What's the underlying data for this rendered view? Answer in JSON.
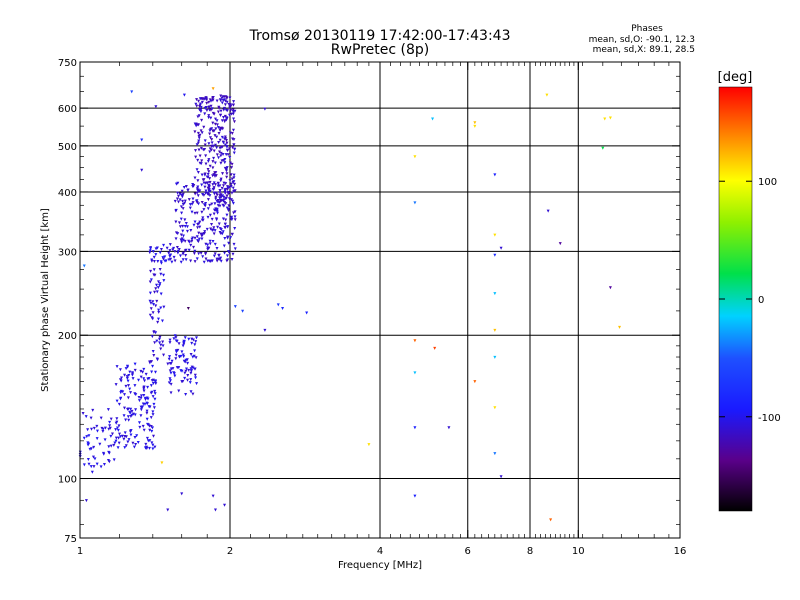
{
  "header": {
    "title": "Tromsø 20130119 17:42:00-17:43:43",
    "subtitle": "RwPretec (8p)"
  },
  "phase_box": {
    "heading": "Phases",
    "line_o": "mean, sd,O: -90.1, 12.3",
    "line_x": "mean, sd,X:  89.1, 28.5"
  },
  "colorbar": {
    "unit": "[deg]",
    "range": [
      -180,
      180
    ],
    "tick_labels": [
      "100",
      "0",
      "-100"
    ],
    "tick_values": [
      100,
      0,
      -100
    ]
  },
  "chart_data": {
    "type": "scatter",
    "xscale": "log",
    "yscale": "log",
    "xlabel": "Frequency [MHz]",
    "ylabel": "Stationary phase Virtual Height [km]",
    "xlim": [
      1,
      16
    ],
    "ylim": [
      75,
      750
    ],
    "xtick_labels": [
      "1",
      "2",
      "4",
      "6",
      "8",
      "10",
      "16"
    ],
    "xtick_values": [
      1,
      2,
      4,
      6,
      8,
      10,
      16
    ],
    "ytick_labels": [
      "750",
      "600",
      "500",
      "400",
      "300",
      "200",
      "100",
      "75"
    ],
    "ytick_values": [
      750,
      600,
      500,
      400,
      300,
      200,
      100,
      75
    ],
    "grid_x": [
      2,
      4,
      6,
      8,
      10
    ],
    "grid_y": [
      100,
      200,
      300,
      400,
      500,
      600
    ],
    "clusters": [
      {
        "f": [
          1.0,
          1.18
        ],
        "h": [
          103,
          140
        ],
        "phase": -105,
        "n": 60
      },
      {
        "f": [
          1.18,
          1.42
        ],
        "h": [
          115,
          175
        ],
        "phase": -105,
        "n": 170
      },
      {
        "f": [
          1.38,
          1.48
        ],
        "h": [
          175,
          290
        ],
        "phase": -108,
        "n": 60
      },
      {
        "f": [
          1.5,
          1.72
        ],
        "h": [
          150,
          200
        ],
        "phase": -105,
        "n": 90
      },
      {
        "f": [
          1.38,
          1.55
        ],
        "h": [
          285,
          312
        ],
        "phase": -105,
        "n": 35
      },
      {
        "f": [
          1.55,
          2.05
        ],
        "h": [
          285,
          420
        ],
        "phase": -110,
        "n": 280
      },
      {
        "f": [
          1.7,
          2.05
        ],
        "h": [
          380,
          640
        ],
        "phase": -115,
        "n": 320
      }
    ],
    "points": [
      {
        "f": 1.27,
        "h": 650,
        "phase": -60
      },
      {
        "f": 1.42,
        "h": 605,
        "phase": -110
      },
      {
        "f": 1.62,
        "h": 640,
        "phase": -100
      },
      {
        "f": 1.85,
        "h": 660,
        "phase": 130
      },
      {
        "f": 1.33,
        "h": 515,
        "phase": -80
      },
      {
        "f": 1.33,
        "h": 445,
        "phase": -110
      },
      {
        "f": 1.02,
        "h": 280,
        "phase": -40
      },
      {
        "f": 1.46,
        "h": 108,
        "phase": 115
      },
      {
        "f": 1.65,
        "h": 228,
        "phase": -150
      },
      {
        "f": 2.05,
        "h": 230,
        "phase": -60
      },
      {
        "f": 2.12,
        "h": 225,
        "phase": -60
      },
      {
        "f": 2.5,
        "h": 232,
        "phase": -70
      },
      {
        "f": 2.55,
        "h": 228,
        "phase": -80
      },
      {
        "f": 2.85,
        "h": 223,
        "phase": -90
      },
      {
        "f": 2.35,
        "h": 205,
        "phase": -110
      },
      {
        "f": 2.35,
        "h": 598,
        "phase": -110
      },
      {
        "f": 1.5,
        "h": 86,
        "phase": -110
      },
      {
        "f": 1.6,
        "h": 93,
        "phase": -110
      },
      {
        "f": 1.85,
        "h": 92,
        "phase": -110
      },
      {
        "f": 1.87,
        "h": 86,
        "phase": -110
      },
      {
        "f": 1.95,
        "h": 88,
        "phase": -110
      },
      {
        "f": 1.03,
        "h": 90,
        "phase": -110
      },
      {
        "f": 3.8,
        "h": 118,
        "phase": 110
      },
      {
        "f": 4.7,
        "h": 475,
        "phase": 110
      },
      {
        "f": 5.1,
        "h": 570,
        "phase": -20
      },
      {
        "f": 6.2,
        "h": 560,
        "phase": 120
      },
      {
        "f": 6.2,
        "h": 550,
        "phase": 110
      },
      {
        "f": 4.7,
        "h": 380,
        "phase": -40
      },
      {
        "f": 6.8,
        "h": 435,
        "phase": -90
      },
      {
        "f": 6.8,
        "h": 325,
        "phase": 110
      },
      {
        "f": 7.0,
        "h": 305,
        "phase": -110
      },
      {
        "f": 6.8,
        "h": 295,
        "phase": -80
      },
      {
        "f": 6.8,
        "h": 245,
        "phase": -20
      },
      {
        "f": 6.8,
        "h": 205,
        "phase": 120
      },
      {
        "f": 4.7,
        "h": 195,
        "phase": 150
      },
      {
        "f": 5.15,
        "h": 188,
        "phase": 160
      },
      {
        "f": 6.8,
        "h": 180,
        "phase": -20
      },
      {
        "f": 4.7,
        "h": 167,
        "phase": -20
      },
      {
        "f": 6.2,
        "h": 160,
        "phase": 150
      },
      {
        "f": 6.8,
        "h": 141,
        "phase": 110
      },
      {
        "f": 4.7,
        "h": 128,
        "phase": -90
      },
      {
        "f": 5.5,
        "h": 128,
        "phase": -110
      },
      {
        "f": 6.8,
        "h": 113,
        "phase": -40
      },
      {
        "f": 7.0,
        "h": 101,
        "phase": -110
      },
      {
        "f": 4.7,
        "h": 92,
        "phase": -90
      },
      {
        "f": 8.65,
        "h": 640,
        "phase": 110
      },
      {
        "f": 8.7,
        "h": 365,
        "phase": -110
      },
      {
        "f": 9.2,
        "h": 312,
        "phase": -130
      },
      {
        "f": 8.8,
        "h": 82,
        "phase": 150
      },
      {
        "f": 11.3,
        "h": 570,
        "phase": 110
      },
      {
        "f": 11.6,
        "h": 573,
        "phase": 110
      },
      {
        "f": 11.2,
        "h": 495,
        "phase": 20
      },
      {
        "f": 11.6,
        "h": 252,
        "phase": -130
      },
      {
        "f": 12.1,
        "h": 208,
        "phase": 120
      }
    ]
  }
}
